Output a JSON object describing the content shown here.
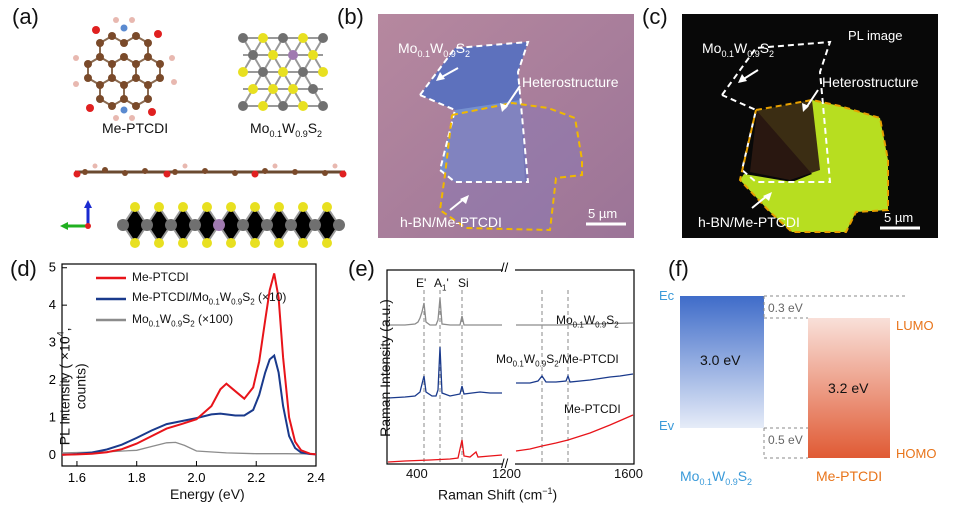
{
  "panels": {
    "a": {
      "label": "(a)",
      "mol_name": "Me-PTCDI",
      "crystal_pre": "Mo",
      "crystal_s1": "0.1",
      "crystal_mid": "W",
      "crystal_s2": "0.9",
      "crystal_post": "S",
      "crystal_s3": "2"
    },
    "b": {
      "label": "(b)",
      "mos2_pre": "Mo",
      "mos2_s1": "0.1",
      "mos2_mid": "W",
      "mos2_s2": "0.9",
      "mos2_post": "S",
      "mos2_s3": "2",
      "hetero": "Heterostructure",
      "hbn": "h-BN/Me-PTCDI",
      "scale": "5 µm",
      "colors": {
        "bg": "#a07a9c",
        "flake": "#5a6fb8",
        "overlap": "#6f8ac9"
      }
    },
    "c": {
      "label": "(c)",
      "title": "PL image",
      "mos2_pre": "Mo",
      "mos2_s1": "0.1",
      "mos2_mid": "W",
      "mos2_s2": "0.9",
      "mos2_post": "S",
      "mos2_s3": "2",
      "hetero": "Heterostructure",
      "hbn": "h-BN/Me-PTCDI",
      "scale": "5 µm",
      "colors": {
        "bg": "#080808",
        "flake": "#b9e021"
      }
    },
    "d": {
      "label": "(d)"
    },
    "e": {
      "label": "(e)"
    },
    "f": {
      "label": "(f)"
    }
  },
  "chart_data": [
    {
      "type": "line",
      "panel": "d",
      "xlabel": "Energy (eV)",
      "ylabel_pre": "PL Intensity ( ×10",
      "ylabel_sup": "4",
      "ylabel_post": ", counts)",
      "xlim": [
        1.55,
        2.4
      ],
      "ylim": [
        -0.3,
        5.1
      ],
      "xticks": [
        "1.6",
        "1.8",
        "2.0",
        "2.2",
        "2.4"
      ],
      "yticks": [
        "0",
        "1",
        "2",
        "3",
        "4",
        "5"
      ],
      "legend_position": "top-left",
      "series": [
        {
          "legend": "Me-PTCDI",
          "color": "#e8141a",
          "x": [
            1.55,
            1.6,
            1.65,
            1.7,
            1.75,
            1.8,
            1.85,
            1.9,
            1.95,
            2.0,
            2.05,
            2.08,
            2.1,
            2.13,
            2.16,
            2.19,
            2.21,
            2.23,
            2.245,
            2.26,
            2.275,
            2.29,
            2.31,
            2.33,
            2.35,
            2.38,
            2.4
          ],
          "y": [
            0.0,
            0.01,
            0.03,
            0.07,
            0.15,
            0.3,
            0.5,
            0.7,
            0.82,
            0.95,
            1.3,
            1.75,
            1.9,
            1.7,
            1.5,
            1.8,
            2.5,
            3.6,
            4.4,
            4.85,
            4.2,
            2.6,
            1.0,
            0.35,
            0.12,
            0.03,
            0.01
          ]
        },
        {
          "legend_pre": "Me-PTCDI/Mo",
          "legend_s1": "0.1",
          "legend_mid": "W",
          "legend_s2": "0.9",
          "legend_post": "S",
          "legend_s3": "2",
          "legend_tail": " (×10)",
          "color": "#1a3a8c",
          "x": [
            1.55,
            1.6,
            1.65,
            1.7,
            1.75,
            1.8,
            1.85,
            1.9,
            1.95,
            2.0,
            2.05,
            2.08,
            2.1,
            2.13,
            2.16,
            2.19,
            2.21,
            2.23,
            2.245,
            2.26,
            2.275,
            2.29,
            2.31,
            2.33,
            2.35,
            2.38,
            2.4
          ],
          "y": [
            0.0,
            0.02,
            0.06,
            0.14,
            0.27,
            0.45,
            0.65,
            0.82,
            0.9,
            0.98,
            1.08,
            1.1,
            1.08,
            1.05,
            1.05,
            1.2,
            1.6,
            2.2,
            2.55,
            2.65,
            2.2,
            1.3,
            0.5,
            0.18,
            0.06,
            0.02,
            0.01
          ]
        },
        {
          "legend_pre": "Mo",
          "legend_s1": "0.1",
          "legend_mid": "W",
          "legend_s2": "0.9",
          "legend_post": "S",
          "legend_s3": "2",
          "legend_tail": " (×100)",
          "color": "#8c8c8c",
          "x": [
            1.55,
            1.6,
            1.7,
            1.8,
            1.85,
            1.9,
            1.93,
            1.96,
            2.0,
            2.1,
            2.2,
            2.3,
            2.4
          ],
          "y": [
            0.05,
            0.06,
            0.08,
            0.12,
            0.22,
            0.32,
            0.33,
            0.25,
            0.1,
            0.05,
            0.03,
            0.03,
            0.02
          ]
        }
      ]
    },
    {
      "type": "line",
      "panel": "e",
      "xlabel": "Raman Shift (cm",
      "xlabel_sup": "−1",
      "xlabel_tail": ")",
      "ylabel": "Raman Intensity (a.u.)",
      "break": "//",
      "xticks": [
        "400",
        "1200",
        "1600"
      ],
      "peak_labels": [
        "E'",
        "A",
        "1",
        "'",
        "Si"
      ],
      "series": [
        {
          "name_pre": "Mo",
          "name_s1": "0.1",
          "name_mid": "W",
          "name_s2": "0.9",
          "name_post": "S",
          "name_s3": "2",
          "color": "#8c8c8c"
        },
        {
          "name_pre": "Mo",
          "name_s1": "0.1",
          "name_mid": "W",
          "name_s2": "0.9",
          "name_post": "S",
          "name_s3": "2",
          "name_tail": "/Me-PTCDI",
          "color": "#1a3a8c"
        },
        {
          "name": "Me-PTCDI",
          "color": "#e8141a"
        }
      ]
    }
  ],
  "band": {
    "ec": "Ec",
    "ev": "Ev",
    "left_gap": "3.0 eV",
    "right_gap": "3.2 eV",
    "cb_offset": "0.3 eV",
    "vb_offset": "0.5 eV",
    "lumo": "LUMO",
    "homo": "HOMO",
    "left_pre": "Mo",
    "left_s1": "0.1",
    "left_mid": "W",
    "left_s2": "0.9",
    "left_post": "S",
    "left_s3": "2",
    "right_name": "Me-PTCDI",
    "colors": {
      "left_top": "#3f6cc9",
      "left_bot": "#e6ecf8",
      "right_top": "#f9e0d9",
      "right_bot": "#e05a34",
      "left_label": "#3a9ad9",
      "right_label": "#e8741a"
    }
  }
}
